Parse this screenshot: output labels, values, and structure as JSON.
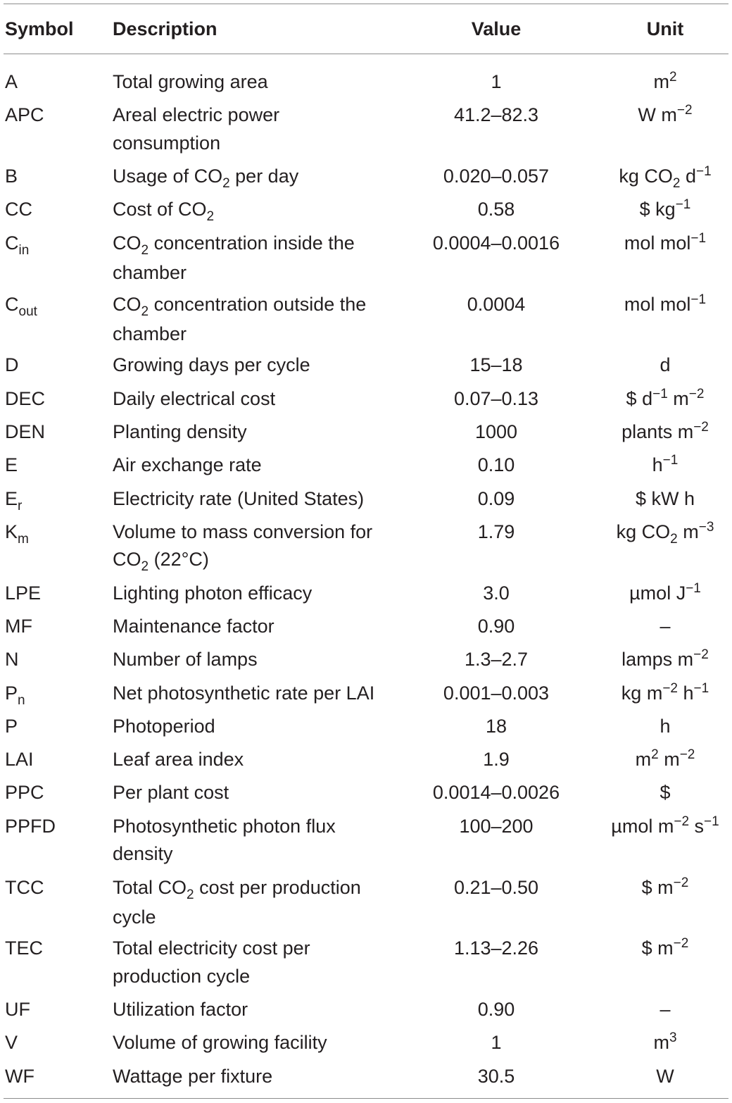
{
  "table": {
    "headers": {
      "symbol": "Symbol",
      "description": "Description",
      "value": "Value",
      "unit": "Unit"
    },
    "rows": [
      {
        "symbol": [
          {
            "t": "A"
          }
        ],
        "description": [
          [
            {
              "t": "Total growing area"
            }
          ]
        ],
        "value": "1",
        "unit": [
          {
            "t": "m"
          },
          {
            "t": "2",
            "s": "sup"
          }
        ]
      },
      {
        "symbol": [
          {
            "t": "APC"
          }
        ],
        "description": [
          [
            {
              "t": "Areal electric power"
            }
          ],
          [
            {
              "t": "consumption"
            }
          ]
        ],
        "value": "41.2–82.3",
        "unit": [
          {
            "t": "W m"
          },
          {
            "t": "−2",
            "s": "sup"
          }
        ]
      },
      {
        "symbol": [
          {
            "t": "B"
          }
        ],
        "description": [
          [
            {
              "t": "Usage of CO"
            },
            {
              "t": "2",
              "s": "sub"
            },
            {
              "t": " per day"
            }
          ]
        ],
        "value": "0.020–0.057",
        "unit": [
          {
            "t": "kg CO"
          },
          {
            "t": "2",
            "s": "sub"
          },
          {
            "t": " d"
          },
          {
            "t": "−1",
            "s": "sup"
          }
        ]
      },
      {
        "symbol": [
          {
            "t": "CC"
          }
        ],
        "description": [
          [
            {
              "t": "Cost of CO"
            },
            {
              "t": "2",
              "s": "sub"
            }
          ]
        ],
        "value": "0.58",
        "unit": [
          {
            "t": "$ kg"
          },
          {
            "t": "−1",
            "s": "sup"
          }
        ]
      },
      {
        "symbol": [
          {
            "t": "C"
          },
          {
            "t": "in",
            "s": "sub"
          }
        ],
        "description": [
          [
            {
              "t": "CO"
            },
            {
              "t": "2",
              "s": "sub"
            },
            {
              "t": " concentration inside the"
            }
          ],
          [
            {
              "t": "chamber"
            }
          ]
        ],
        "value": "0.0004–0.0016",
        "unit": [
          {
            "t": "mol mol"
          },
          {
            "t": "−1",
            "s": "sup"
          }
        ]
      },
      {
        "symbol": [
          {
            "t": "C"
          },
          {
            "t": "out",
            "s": "sub"
          }
        ],
        "description": [
          [
            {
              "t": "CO"
            },
            {
              "t": "2",
              "s": "sub"
            },
            {
              "t": " concentration outside the"
            }
          ],
          [
            {
              "t": "chamber"
            }
          ]
        ],
        "value": "0.0004",
        "unit": [
          {
            "t": "mol mol"
          },
          {
            "t": "−1",
            "s": "sup"
          }
        ]
      },
      {
        "symbol": [
          {
            "t": "D"
          }
        ],
        "description": [
          [
            {
              "t": "Growing days per cycle"
            }
          ]
        ],
        "value": "15–18",
        "unit": [
          {
            "t": "d"
          }
        ]
      },
      {
        "symbol": [
          {
            "t": "DEC"
          }
        ],
        "description": [
          [
            {
              "t": "Daily electrical cost"
            }
          ]
        ],
        "value": "0.07–0.13",
        "unit": [
          {
            "t": "$ d"
          },
          {
            "t": "−1",
            "s": "sup"
          },
          {
            "t": " m"
          },
          {
            "t": "−2",
            "s": "sup"
          }
        ]
      },
      {
        "symbol": [
          {
            "t": "DEN"
          }
        ],
        "description": [
          [
            {
              "t": "Planting density"
            }
          ]
        ],
        "value": "1000",
        "unit": [
          {
            "t": "plants m"
          },
          {
            "t": "−2",
            "s": "sup"
          }
        ]
      },
      {
        "symbol": [
          {
            "t": "E"
          }
        ],
        "description": [
          [
            {
              "t": "Air exchange rate"
            }
          ]
        ],
        "value": "0.10",
        "unit": [
          {
            "t": "h"
          },
          {
            "t": "−1",
            "s": "sup"
          }
        ]
      },
      {
        "symbol": [
          {
            "t": "E"
          },
          {
            "t": "r",
            "s": "sub"
          }
        ],
        "description": [
          [
            {
              "t": "Electricity rate (United States)"
            }
          ]
        ],
        "value": "0.09",
        "unit": [
          {
            "t": "$ kW h"
          }
        ]
      },
      {
        "symbol": [
          {
            "t": "K"
          },
          {
            "t": "m",
            "s": "sub"
          }
        ],
        "description": [
          [
            {
              "t": "Volume to mass conversion for"
            }
          ],
          [
            {
              "t": "CO"
            },
            {
              "t": "2",
              "s": "sub"
            },
            {
              "t": " (22°C)"
            }
          ]
        ],
        "value": "1.79",
        "unit": [
          {
            "t": "kg CO"
          },
          {
            "t": "2",
            "s": "sub"
          },
          {
            "t": " m"
          },
          {
            "t": "−3",
            "s": "sup"
          }
        ]
      },
      {
        "symbol": [
          {
            "t": "LPE"
          }
        ],
        "description": [
          [
            {
              "t": "Lighting photon efficacy"
            }
          ]
        ],
        "value": "3.0",
        "unit": [
          {
            "t": "µmol J"
          },
          {
            "t": "−1",
            "s": "sup"
          }
        ]
      },
      {
        "symbol": [
          {
            "t": "MF"
          }
        ],
        "description": [
          [
            {
              "t": "Maintenance factor"
            }
          ]
        ],
        "value": "0.90",
        "unit": [
          {
            "t": "–"
          }
        ]
      },
      {
        "symbol": [
          {
            "t": "N"
          }
        ],
        "description": [
          [
            {
              "t": "Number of lamps"
            }
          ]
        ],
        "value": "1.3–2.7",
        "unit": [
          {
            "t": "lamps m"
          },
          {
            "t": "−2",
            "s": "sup"
          }
        ]
      },
      {
        "symbol": [
          {
            "t": "P"
          },
          {
            "t": "n",
            "s": "sub"
          }
        ],
        "description": [
          [
            {
              "t": "Net photosynthetic rate per LAI"
            }
          ]
        ],
        "value": "0.001–0.003",
        "unit": [
          {
            "t": "kg m"
          },
          {
            "t": "−2",
            "s": "sup"
          },
          {
            "t": " h"
          },
          {
            "t": "−1",
            "s": "sup"
          }
        ]
      },
      {
        "symbol": [
          {
            "t": "P"
          }
        ],
        "description": [
          [
            {
              "t": "Photoperiod"
            }
          ]
        ],
        "value": "18",
        "unit": [
          {
            "t": "h"
          }
        ]
      },
      {
        "symbol": [
          {
            "t": "LAI"
          }
        ],
        "description": [
          [
            {
              "t": "Leaf area index"
            }
          ]
        ],
        "value": "1.9",
        "unit": [
          {
            "t": "m"
          },
          {
            "t": "2",
            "s": "sup"
          },
          {
            "t": " m"
          },
          {
            "t": "−2",
            "s": "sup"
          }
        ]
      },
      {
        "symbol": [
          {
            "t": "PPC"
          }
        ],
        "description": [
          [
            {
              "t": "Per plant cost"
            }
          ]
        ],
        "value": "0.0014–0.0026",
        "unit": [
          {
            "t": "$"
          }
        ]
      },
      {
        "symbol": [
          {
            "t": "PPFD"
          }
        ],
        "description": [
          [
            {
              "t": "Photosynthetic photon flux"
            }
          ],
          [
            {
              "t": "density"
            }
          ]
        ],
        "value": "100–200",
        "unit": [
          {
            "t": "µmol m"
          },
          {
            "t": "−2",
            "s": "sup"
          },
          {
            "t": " s"
          },
          {
            "t": "−1",
            "s": "sup"
          }
        ]
      },
      {
        "symbol": [
          {
            "t": "TCC"
          }
        ],
        "description": [
          [
            {
              "t": "Total CO"
            },
            {
              "t": "2",
              "s": "sub"
            },
            {
              "t": " cost per production"
            }
          ],
          [
            {
              "t": "cycle"
            }
          ]
        ],
        "value": "0.21–0.50",
        "unit": [
          {
            "t": "$ m"
          },
          {
            "t": "−2",
            "s": "sup"
          }
        ]
      },
      {
        "symbol": [
          {
            "t": "TEC"
          }
        ],
        "description": [
          [
            {
              "t": "Total electricity cost per"
            }
          ],
          [
            {
              "t": "production cycle"
            }
          ]
        ],
        "value": "1.13–2.26",
        "unit": [
          {
            "t": "$ m"
          },
          {
            "t": "−2",
            "s": "sup"
          }
        ]
      },
      {
        "symbol": [
          {
            "t": "UF"
          }
        ],
        "description": [
          [
            {
              "t": "Utilization factor"
            }
          ]
        ],
        "value": "0.90",
        "unit": [
          {
            "t": "–"
          }
        ]
      },
      {
        "symbol": [
          {
            "t": "V"
          }
        ],
        "description": [
          [
            {
              "t": "Volume of growing facility"
            }
          ]
        ],
        "value": "1",
        "unit": [
          {
            "t": "m"
          },
          {
            "t": "3",
            "s": "sup"
          }
        ]
      },
      {
        "symbol": [
          {
            "t": "WF"
          }
        ],
        "description": [
          [
            {
              "t": "Wattage per fixture"
            }
          ]
        ],
        "value": "30.5",
        "unit": [
          {
            "t": "W"
          }
        ]
      }
    ]
  }
}
